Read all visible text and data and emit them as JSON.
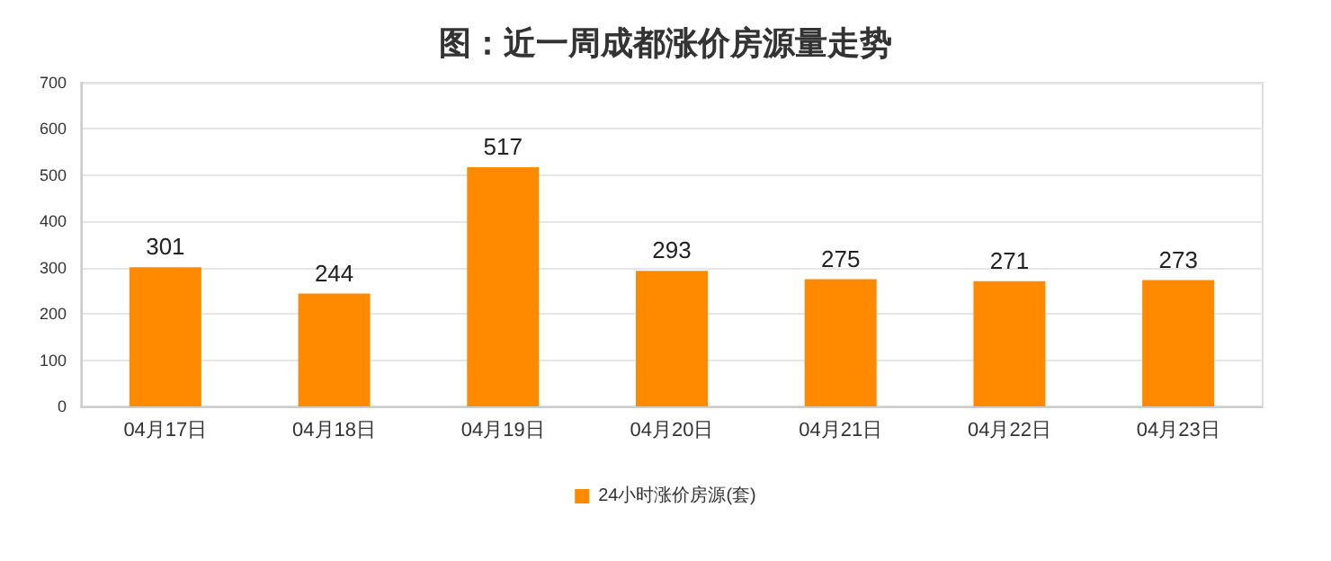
{
  "chart_data": {
    "type": "bar",
    "title": "图：近一周成都涨价房源量走势",
    "categories": [
      "04月17日",
      "04月18日",
      "04月19日",
      "04月20日",
      "04月21日",
      "04月22日",
      "04月23日"
    ],
    "series": [
      {
        "name": "24小时涨价房源(套)",
        "color": "#ff8a00",
        "values": [
          301,
          244,
          517,
          293,
          275,
          271,
          273
        ]
      }
    ],
    "ylim": [
      0,
      700
    ],
    "yticks": [
      0,
      100,
      200,
      300,
      400,
      500,
      600,
      700
    ],
    "grid": "y",
    "legend": "bottom",
    "data_labels": true
  }
}
